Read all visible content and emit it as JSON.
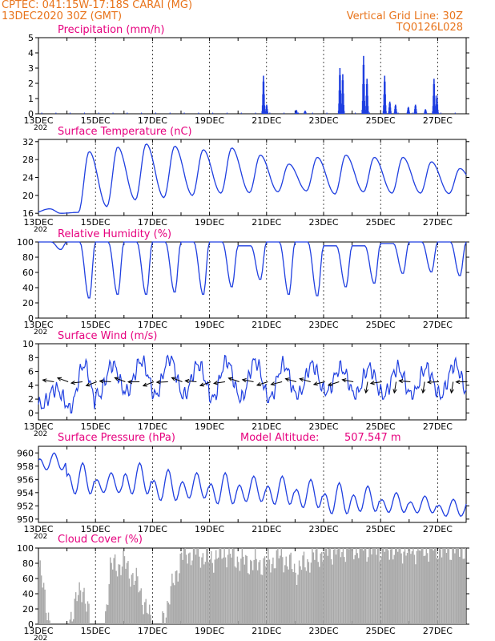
{
  "header": {
    "line1": "CPTEC:   041:15W-17:18S   CARAI (MG)",
    "line2": "13DEC2020 30Z (GMT)",
    "grid_note": "Vertical Grid Line: 30Z",
    "model_code": "TQ0126L028"
  },
  "colors": {
    "header": "#e8731a",
    "title": "#e6007e",
    "series": "#1f3fe0",
    "cloud": "#a9a9a9",
    "frame": "#000000",
    "grid": "#000000"
  },
  "date_ticks": [
    "13DEC",
    "15DEC",
    "17DEC",
    "19DEC",
    "21DEC",
    "23DEC",
    "25DEC",
    "27DEC"
  ],
  "year_fragment": "202",
  "chart_data": [
    {
      "id": "precip",
      "type": "bar",
      "title": "Precipitation (mm/h)",
      "ylim": [
        0,
        5
      ],
      "yticks": [
        "0",
        "1",
        "2",
        "3",
        "4",
        "5"
      ],
      "x_unit": "days since 13DEC 00Z",
      "x_range": [
        0,
        15
      ],
      "bursts": [
        {
          "x": 7.87,
          "peak": 2.5
        },
        {
          "x": 7.98,
          "peak": 0.6
        },
        {
          "x": 9.02,
          "peak": 0.25
        },
        {
          "x": 9.33,
          "peak": 0.2
        },
        {
          "x": 10.55,
          "peak": 3.0
        },
        {
          "x": 10.65,
          "peak": 2.6
        },
        {
          "x": 11.38,
          "peak": 3.8
        },
        {
          "x": 11.5,
          "peak": 2.3
        },
        {
          "x": 12.12,
          "peak": 2.5
        },
        {
          "x": 12.3,
          "peak": 0.8
        },
        {
          "x": 12.5,
          "peak": 0.6
        },
        {
          "x": 12.95,
          "peak": 0.45
        },
        {
          "x": 13.2,
          "peak": 0.6
        },
        {
          "x": 13.55,
          "peak": 0.3
        },
        {
          "x": 13.85,
          "peak": 2.3
        },
        {
          "x": 13.95,
          "peak": 1.2
        }
      ]
    },
    {
      "id": "temp",
      "type": "line",
      "title": "Surface Temperature (nC)",
      "ylim": [
        15.5,
        32.5
      ],
      "yticks": [
        "16",
        "20",
        "24",
        "28",
        "32"
      ],
      "ytick_values": [
        16,
        20,
        24,
        28,
        32
      ],
      "daily_min": [
        17.0,
        16.2,
        17.5,
        19.0,
        19.5,
        20.0,
        20.5,
        20.6,
        20.8,
        21.0,
        20.3,
        20.8,
        20.5,
        20.5,
        20.4,
        21.0
      ],
      "daily_max": [
        16.0,
        29.8,
        30.8,
        31.5,
        31.0,
        30.2,
        30.6,
        29.0,
        27.0,
        28.5,
        29.0,
        28.5,
        28.5,
        27.5,
        26.0,
        25.0
      ]
    },
    {
      "id": "rh",
      "type": "line",
      "title": "Relative Humidity (%)",
      "ylim": [
        0,
        100
      ],
      "yticks": [
        "0",
        "20",
        "40",
        "60",
        "80",
        "100"
      ],
      "ytick_values": [
        0,
        20,
        40,
        60,
        80,
        100
      ],
      "daily_min": [
        90,
        25,
        30,
        30,
        33,
        30,
        40,
        50,
        30,
        28,
        40,
        45,
        58,
        60,
        55,
        78
      ],
      "daily_max": [
        100,
        100,
        100,
        100,
        100,
        100,
        100,
        95,
        100,
        100,
        95,
        95,
        98,
        100,
        100,
        100
      ]
    },
    {
      "id": "wind",
      "type": "line",
      "title": "Surface Wind (m/s)",
      "ylim": [
        -1,
        10
      ],
      "yticks": [
        "0",
        "2",
        "4",
        "6",
        "8",
        "10"
      ],
      "ytick_values": [
        0,
        2,
        4,
        6,
        8,
        10
      ],
      "daily_min": [
        1.0,
        0.5,
        2.5,
        3.0,
        2.5,
        2.5,
        2.0,
        2.0,
        2.0,
        2.5,
        3.0,
        2.5,
        2.5,
        2.5,
        2.5,
        3.0
      ],
      "daily_max": [
        3.5,
        7.0,
        7.0,
        7.5,
        8.0,
        7.0,
        7.5,
        7.5,
        7.0,
        7.0,
        6.5,
        6.5,
        6.5,
        6.5,
        7.0,
        7.5
      ],
      "barb_note": "wind direction arrows about every 12 h near 4.5 m/s"
    },
    {
      "id": "pres",
      "type": "line",
      "title": "Surface Pressure (hPa)",
      "ylim": [
        949.5,
        961
      ],
      "yticks": [
        "950",
        "952",
        "954",
        "956",
        "958",
        "960"
      ],
      "ytick_values": [
        950,
        952,
        954,
        956,
        958,
        960
      ],
      "daily_min": [
        957.0,
        953.0,
        953.5,
        953.0,
        952.0,
        952.5,
        951.5,
        952.0,
        951.5,
        951.0,
        950.0,
        950.5,
        950.5,
        950.5,
        950.0,
        951.0
      ],
      "daily_max": [
        960.0,
        958.5,
        957.0,
        958.5,
        957.5,
        957.0,
        957.0,
        956.5,
        956.5,
        956.0,
        955.5,
        955.0,
        954.0,
        953.5,
        953.0,
        953.0
      ]
    },
    {
      "id": "cloud",
      "type": "area",
      "title": "Cloud Cover (%)",
      "ylim": [
        0,
        100
      ],
      "yticks": [
        "0",
        "20",
        "40",
        "60",
        "80",
        "100"
      ],
      "ytick_values": [
        0,
        20,
        40,
        60,
        80,
        100
      ],
      "profile": [
        [
          0,
          75
        ],
        [
          0.4,
          0
        ],
        [
          1.0,
          0
        ],
        [
          1.3,
          30
        ],
        [
          1.55,
          50
        ],
        [
          1.8,
          0
        ],
        [
          2.3,
          0
        ],
        [
          2.5,
          75
        ],
        [
          3.0,
          80
        ],
        [
          3.5,
          50
        ],
        [
          3.95,
          0
        ],
        [
          4.3,
          0
        ],
        [
          5.0,
          90
        ],
        [
          5.5,
          95
        ],
        [
          6.0,
          85
        ],
        [
          6.5,
          95
        ],
        [
          7.0,
          85
        ],
        [
          7.5,
          80
        ],
        [
          8.0,
          80
        ],
        [
          8.5,
          90
        ],
        [
          9.0,
          70
        ],
        [
          9.5,
          85
        ],
        [
          10.0,
          95
        ],
        [
          10.5,
          98
        ],
        [
          11.0,
          100
        ],
        [
          12.0,
          100
        ],
        [
          13.0,
          98
        ],
        [
          14.0,
          100
        ],
        [
          15.0,
          100
        ]
      ]
    }
  ],
  "model_altitude_label": "Model Altitude:",
  "model_altitude_value": "507.547 m"
}
